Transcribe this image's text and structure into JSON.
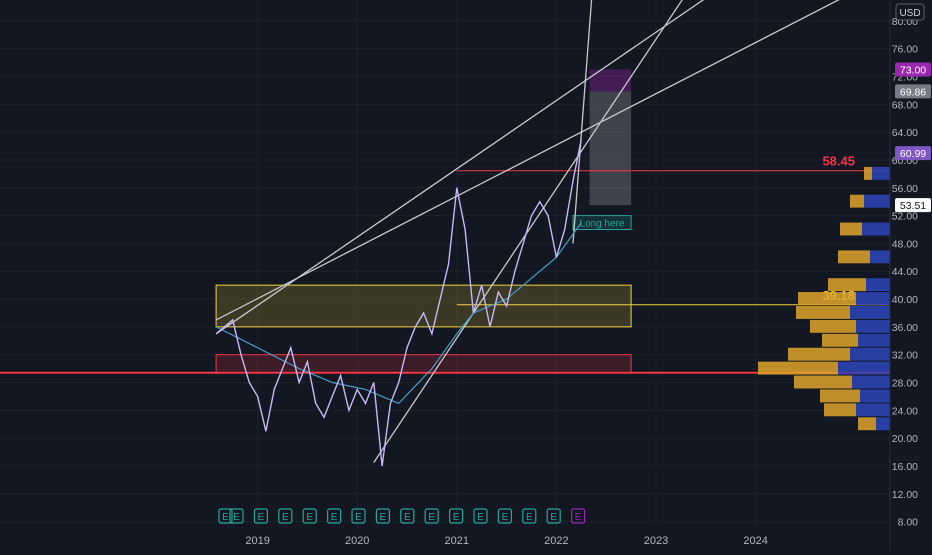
{
  "chart_data": {
    "type": "line",
    "currency": "USD",
    "x_labels": [
      "2019",
      "2020",
      "2021",
      "2022",
      "2023",
      "2024"
    ],
    "y_ticks": [
      8,
      12,
      16,
      20,
      24,
      28,
      32,
      36,
      40,
      44,
      48,
      52,
      56,
      60,
      64,
      68,
      72,
      76,
      80
    ],
    "ylim": [
      5.5,
      83
    ],
    "price_series": {
      "x": [
        "2018-08",
        "2018-10",
        "2018-11",
        "2018-12",
        "2019-01",
        "2019-02",
        "2019-03",
        "2019-04",
        "2019-05",
        "2019-06",
        "2019-07",
        "2019-08",
        "2019-09",
        "2019-10",
        "2019-11",
        "2019-12",
        "2020-01",
        "2020-02",
        "2020-03",
        "2020-04",
        "2020-05",
        "2020-06",
        "2020-07",
        "2020-08",
        "2020-09",
        "2020-10",
        "2020-11",
        "2020-12",
        "2021-01",
        "2021-02",
        "2021-03",
        "2021-04",
        "2021-05",
        "2021-06",
        "2021-07",
        "2021-08",
        "2021-09",
        "2021-10",
        "2021-11",
        "2021-12",
        "2022-01",
        "2022-02",
        "2022-03",
        "2022-04"
      ],
      "y": [
        35,
        37,
        32,
        28,
        26,
        21,
        27,
        30,
        33,
        28,
        31,
        25,
        23,
        26,
        29,
        24,
        27,
        25,
        28,
        16,
        25,
        28,
        33,
        36,
        38,
        35,
        40,
        45,
        56,
        50,
        38,
        42,
        36,
        41,
        39,
        44,
        48,
        52,
        54,
        52,
        46,
        50,
        57,
        63
      ]
    },
    "moving_average": {
      "x": [
        "2018-08",
        "2019-01",
        "2019-06",
        "2019-10",
        "2020-02",
        "2020-06",
        "2020-10",
        "2021-01",
        "2021-03",
        "2021-07",
        "2021-10",
        "2022-01",
        "2022-04"
      ],
      "y": [
        36,
        33,
        30,
        28,
        27,
        25,
        30,
        35,
        38,
        40,
        43,
        46,
        51
      ]
    },
    "horizontal_levels": [
      {
        "price": 58.45,
        "label": "58.45",
        "color": "#f23645"
      },
      {
        "price": 39.18,
        "label": "39.18",
        "color": "#f5d33a"
      },
      {
        "price": 29.4,
        "label": "",
        "color": "#f23645"
      }
    ],
    "zones": [
      {
        "x_from": "2018-08",
        "x_to": "2022-10",
        "y_from": 36,
        "y_to": 42,
        "color": "#f5d33a"
      },
      {
        "x_from": "2018-08",
        "x_to": "2022-10",
        "y_from": 29.4,
        "y_to": 32,
        "color": "#f23645"
      },
      {
        "x_from": "2022-03",
        "x_to": "2022-10",
        "y_from": 50,
        "y_to": 52,
        "color": "#26a69a",
        "label": "Long here"
      }
    ],
    "trend_lines": [
      {
        "x": [
          "2018-08",
          "2022-04"
        ],
        "y": [
          35,
          71
        ]
      },
      {
        "x": [
          "2018-08",
          "2022-04"
        ],
        "y": [
          37,
          64
        ]
      },
      {
        "x": [
          "2020-03",
          "2022-10"
        ],
        "y": [
          16.5,
          72
        ]
      },
      {
        "x": [
          "2022-03",
          "2022-06"
        ],
        "y": [
          48,
          95
        ]
      }
    ],
    "position_box": {
      "x_from": "2022-05",
      "x_to": "2022-10",
      "entry": 69.86,
      "target": 73.0,
      "stop": 53.51
    },
    "price_labels": [
      {
        "value": "73.00",
        "price": 73.0,
        "bg": "#9c27b0"
      },
      {
        "value": "69.86",
        "price": 69.86,
        "bg": "#787b86"
      },
      {
        "value": "60.99",
        "price": 60.99,
        "bg": "#7e57c2"
      },
      {
        "value": "53.51",
        "price": 53.51,
        "bg": "#ffffff"
      }
    ],
    "earnings_markers": [
      "E",
      "E",
      "E",
      "E",
      "E",
      "E",
      "E",
      "E",
      "E",
      "E",
      "E",
      "E",
      "E",
      "E",
      "E",
      "E"
    ],
    "volume_profile": [
      {
        "price": 58,
        "up": 8,
        "down": 18
      },
      {
        "price": 54,
        "up": 14,
        "down": 26
      },
      {
        "price": 50,
        "up": 22,
        "down": 28
      },
      {
        "price": 46,
        "up": 32,
        "down": 20
      },
      {
        "price": 42,
        "up": 38,
        "down": 24
      },
      {
        "price": 40,
        "up": 58,
        "down": 34
      },
      {
        "price": 38,
        "up": 54,
        "down": 40
      },
      {
        "price": 36,
        "up": 46,
        "down": 34
      },
      {
        "price": 34,
        "up": 36,
        "down": 32
      },
      {
        "price": 32,
        "up": 62,
        "down": 40
      },
      {
        "price": 30,
        "up": 80,
        "down": 52
      },
      {
        "price": 28,
        "up": 58,
        "down": 38
      },
      {
        "price": 26,
        "up": 40,
        "down": 30
      },
      {
        "price": 24,
        "up": 32,
        "down": 34
      },
      {
        "price": 22,
        "up": 18,
        "down": 14
      }
    ],
    "colors": {
      "background": "#131722",
      "grid": "#1e222d",
      "text": "#b2b5be",
      "price_line": "#c8b8f5",
      "ma_line": "#4a9ec7",
      "trend": "#c8c9cc",
      "vp_up": "#e0a52b",
      "vp_down": "#2e45b8",
      "earnings": "#26a69a"
    }
  }
}
